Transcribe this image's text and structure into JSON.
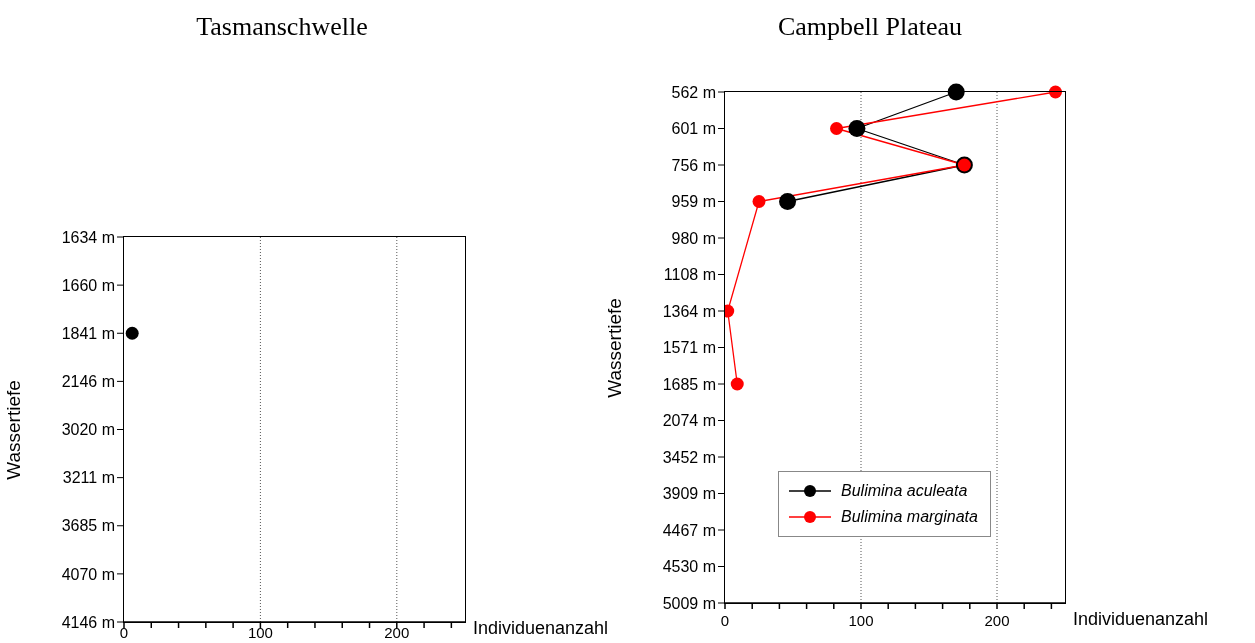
{
  "chart_data": [
    {
      "type": "line",
      "title": "Tasmanschwelle",
      "xlabel": "Individuenanzahl",
      "ylabel": "Wassertiefe",
      "orientation": "horizontal",
      "categories": [
        "1634 m",
        "1660 m",
        "1841 m",
        "2146 m",
        "3020 m",
        "3211 m",
        "3685 m",
        "4070 m",
        "4146 m"
      ],
      "series": [
        {
          "color": "#000000",
          "values": [
            null,
            null,
            6,
            null,
            null,
            null,
            null,
            null,
            null
          ]
        }
      ],
      "xlim": [
        0,
        250
      ],
      "xticks": [
        0,
        {
          "value": 20,
          "label": null
        },
        {
          "value": 40,
          "label": null
        },
        {
          "value": 60,
          "label": null
        },
        {
          "value": 80,
          "label": null
        },
        100,
        {
          "value": 120,
          "label": null
        },
        {
          "value": 140,
          "label": null
        },
        {
          "value": 160,
          "label": null
        },
        {
          "value": 180,
          "label": null
        },
        200,
        {
          "value": 220,
          "label": null
        },
        {
          "value": 240,
          "label": null
        }
      ],
      "grid": "x",
      "marker": "circle",
      "line_style": "solid"
    },
    {
      "type": "line",
      "title": "Campbell Plateau",
      "xlabel": "Individuenanzahl",
      "ylabel": "Wassertiefe",
      "orientation": "horizontal",
      "categories": [
        "562 m",
        "601 m",
        "756 m",
        "959 m",
        "980 m",
        "1108 m",
        "1364 m",
        "1571 m",
        "1685 m",
        "2074 m",
        "3452 m",
        "3909 m",
        "4467 m",
        "4530 m",
        "5009 m"
      ],
      "series": [
        {
          "name": "Bulimina aculeata",
          "color": "#000000",
          "values": [
            170,
            97,
            176,
            46,
            null,
            null,
            null,
            null,
            null,
            null,
            null,
            null,
            null,
            null,
            null
          ]
        },
        {
          "name": "Bulimina marginata",
          "color": "#ff0000",
          "values": [
            243,
            82,
            176,
            25,
            null,
            null,
            2,
            null,
            9,
            null,
            null,
            null,
            null,
            null,
            null
          ]
        }
      ],
      "xlim": [
        0,
        250
      ],
      "xticks": [
        0,
        {
          "value": 20,
          "label": null
        },
        {
          "value": 40,
          "label": null
        },
        {
          "value": 60,
          "label": null
        },
        {
          "value": 80,
          "label": null
        },
        100,
        {
          "value": 120,
          "label": null
        },
        {
          "value": 140,
          "label": null
        },
        {
          "value": 160,
          "label": null
        },
        {
          "value": 180,
          "label": null
        },
        200,
        {
          "value": 220,
          "label": null
        },
        {
          "value": 240,
          "label": null
        }
      ],
      "grid": "x",
      "marker": "circle",
      "line_style": "solid",
      "legend": "bottom"
    }
  ]
}
